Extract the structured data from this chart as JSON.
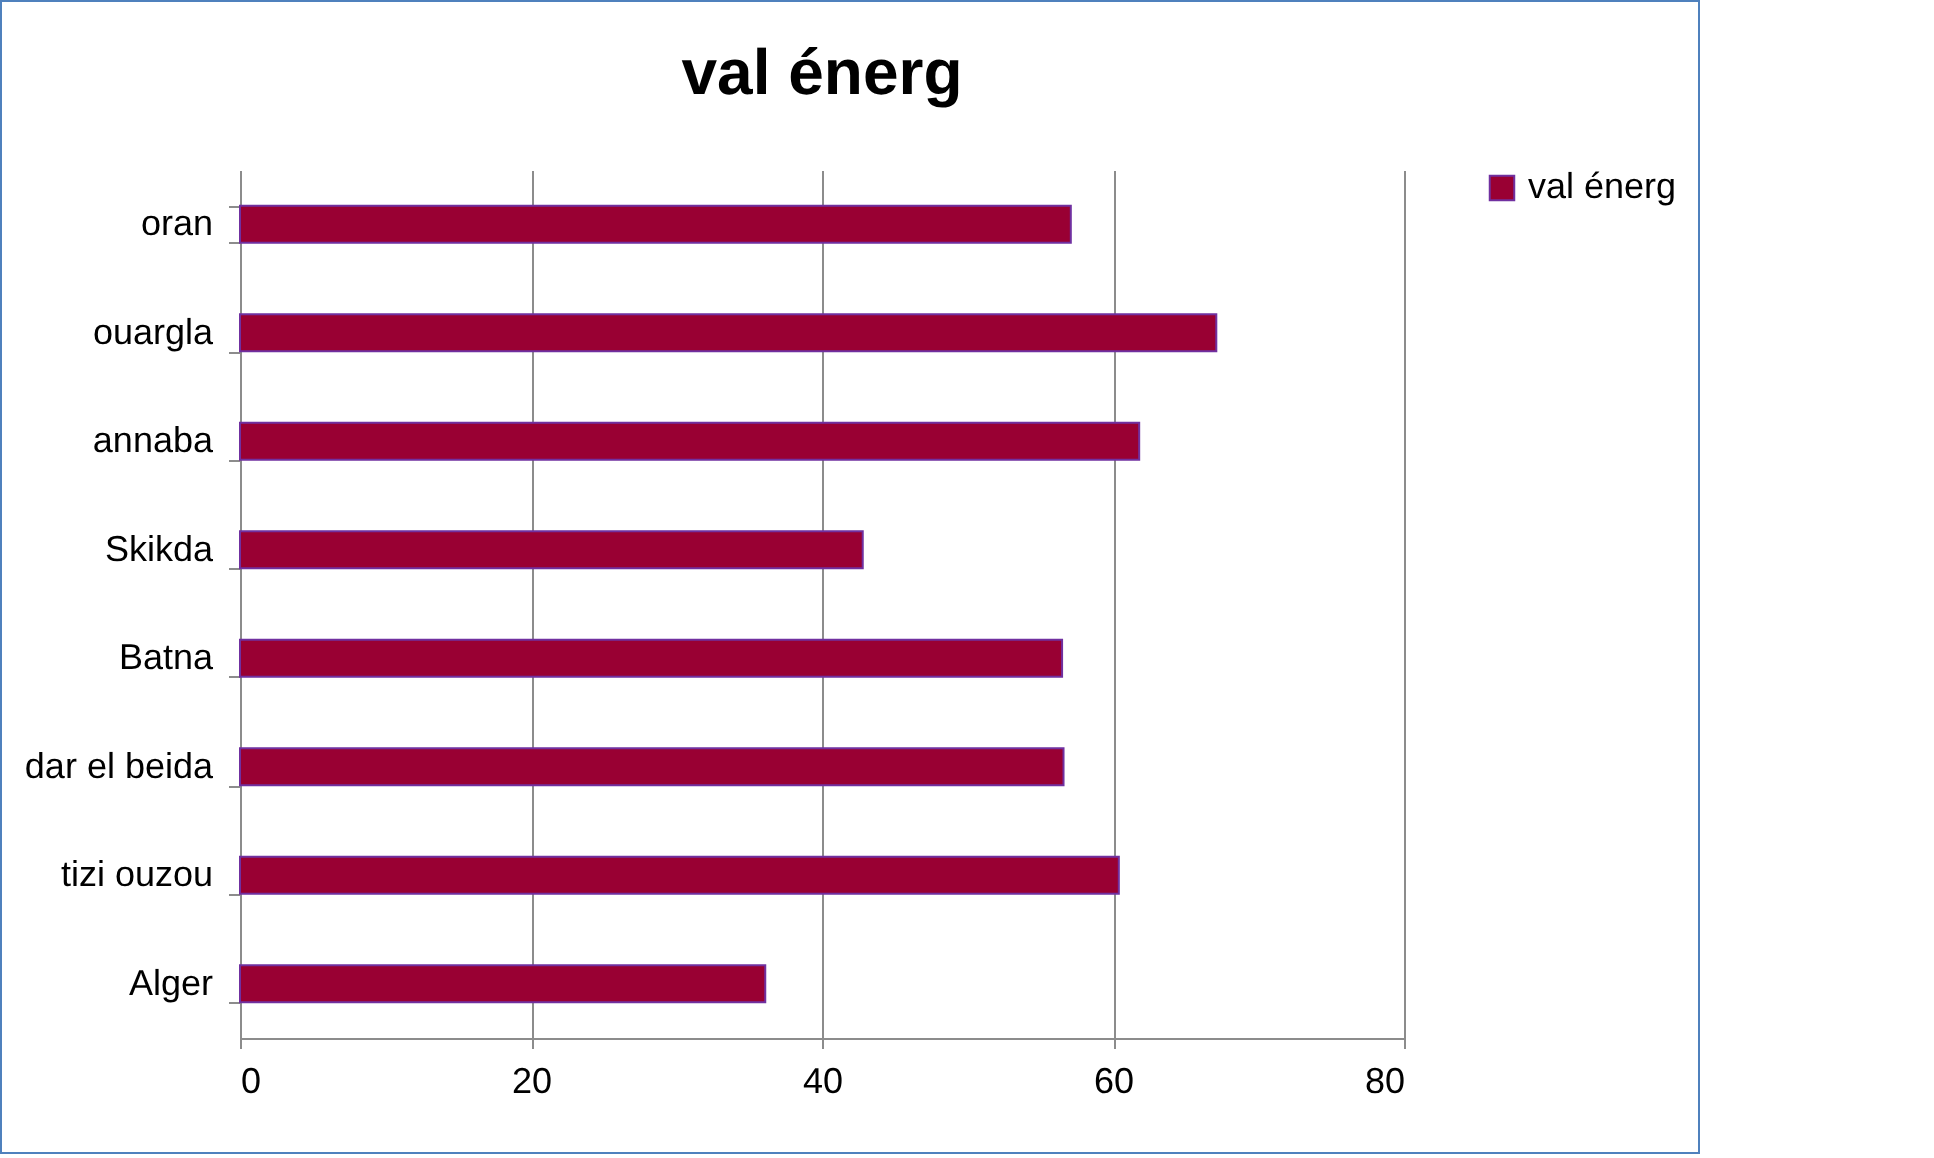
{
  "chart_data": {
    "type": "bar",
    "orientation": "horizontal",
    "title": "val énerg",
    "categories": [
      "oran",
      "ouargla",
      "annaba",
      "Skikda",
      "Batna",
      "dar el beida",
      "tizi ouzou",
      "Alger"
    ],
    "series": [
      {
        "name": "val énerg",
        "color": "#990033",
        "values": [
          57.1,
          67.1,
          61.8,
          42.8,
          56.5,
          56.6,
          60.4,
          36.1
        ]
      }
    ],
    "xlim": [
      0,
      80
    ],
    "xticks": [
      0,
      20,
      40,
      60,
      80
    ],
    "grid": "x",
    "legend": "right"
  }
}
